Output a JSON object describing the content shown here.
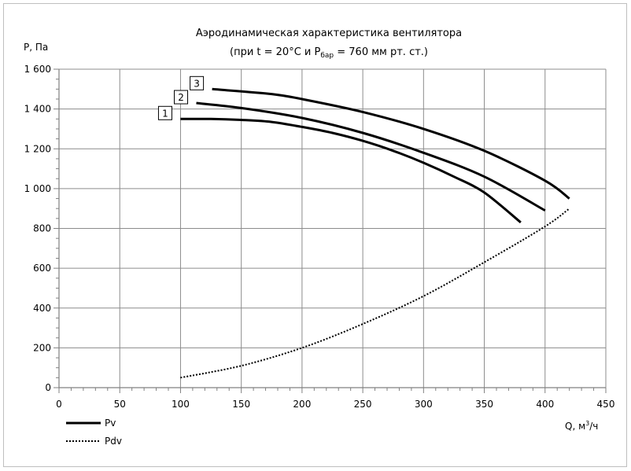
{
  "chart_data": {
    "type": "line",
    "title": "Аэродинамическая характеристика вентилятора",
    "subtitle": {
      "pre": "(при t = 20°C и P",
      "sub": "бар",
      "post": " = 760 мм рт. ст.)"
    },
    "ylabel": "P, Па",
    "xlabel": {
      "pre": "Q, м",
      "sup": "3",
      "post": "/ч"
    },
    "xlim": [
      0,
      450
    ],
    "ylim": [
      0,
      1600
    ],
    "x_ticks": [
      0,
      50,
      100,
      150,
      200,
      250,
      300,
      350,
      400,
      450
    ],
    "y_ticks": [
      0,
      200,
      400,
      600,
      800,
      1000,
      1200,
      1400,
      1600
    ],
    "x_tick_labels": [
      "0",
      "50",
      "100",
      "150",
      "200",
      "250",
      "300",
      "350",
      "400",
      "450"
    ],
    "y_tick_labels": [
      "0",
      "200",
      "400",
      "600",
      "800",
      "1 000",
      "1 200",
      "1 400",
      "1 600"
    ],
    "grid": true,
    "legend_position": "bottom-left",
    "legend": [
      {
        "label": "Pv",
        "style": "solid"
      },
      {
        "label": "Pdv",
        "style": "dotted"
      }
    ],
    "series": [
      {
        "label": "1",
        "kind": "Pv",
        "x": [
          100,
          125,
          150,
          175,
          200,
          225,
          250,
          275,
          300,
          325,
          350,
          380
        ],
        "y": [
          1350,
          1350,
          1345,
          1335,
          1310,
          1280,
          1240,
          1190,
          1130,
          1060,
          980,
          830
        ]
      },
      {
        "label": "2",
        "kind": "Pv",
        "x": [
          113,
          150,
          200,
          250,
          300,
          350,
          400
        ],
        "y": [
          1430,
          1405,
          1355,
          1280,
          1180,
          1060,
          890
        ]
      },
      {
        "label": "3",
        "kind": "Pv",
        "x": [
          126,
          175,
          200,
          250,
          300,
          350,
          400,
          420
        ],
        "y": [
          1500,
          1475,
          1450,
          1385,
          1300,
          1190,
          1040,
          950
        ]
      },
      {
        "label": "",
        "kind": "Pdv",
        "x": [
          100,
          150,
          200,
          250,
          300,
          350,
          400,
          420
        ],
        "y": [
          50,
          110,
          200,
          320,
          460,
          630,
          810,
          900
        ]
      }
    ]
  }
}
